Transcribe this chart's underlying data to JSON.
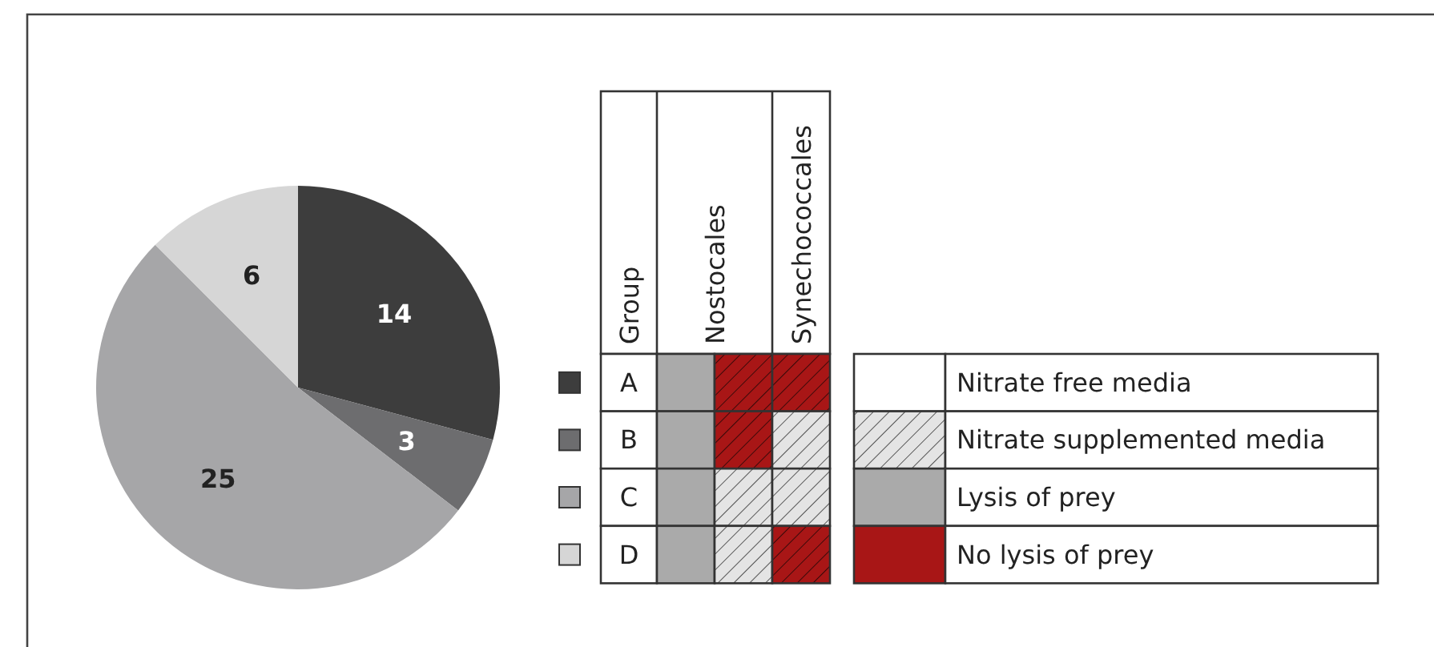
{
  "chart_data": {
    "type": "pie",
    "categories": [
      "A",
      "B",
      "C",
      "D"
    ],
    "values": [
      14,
      3,
      25,
      6
    ],
    "colors": [
      "#3d3d3d",
      "#6d6d6f",
      "#a6a6a8",
      "#d6d6d6"
    ],
    "data_labels": true,
    "legend": "right",
    "annotations": [
      "Group",
      "Nostocales",
      "Synechococcales",
      "Nitrate free media",
      "Nitrate supplemented media",
      "Lysis of prey",
      "No lysis of prey"
    ]
  }
}
